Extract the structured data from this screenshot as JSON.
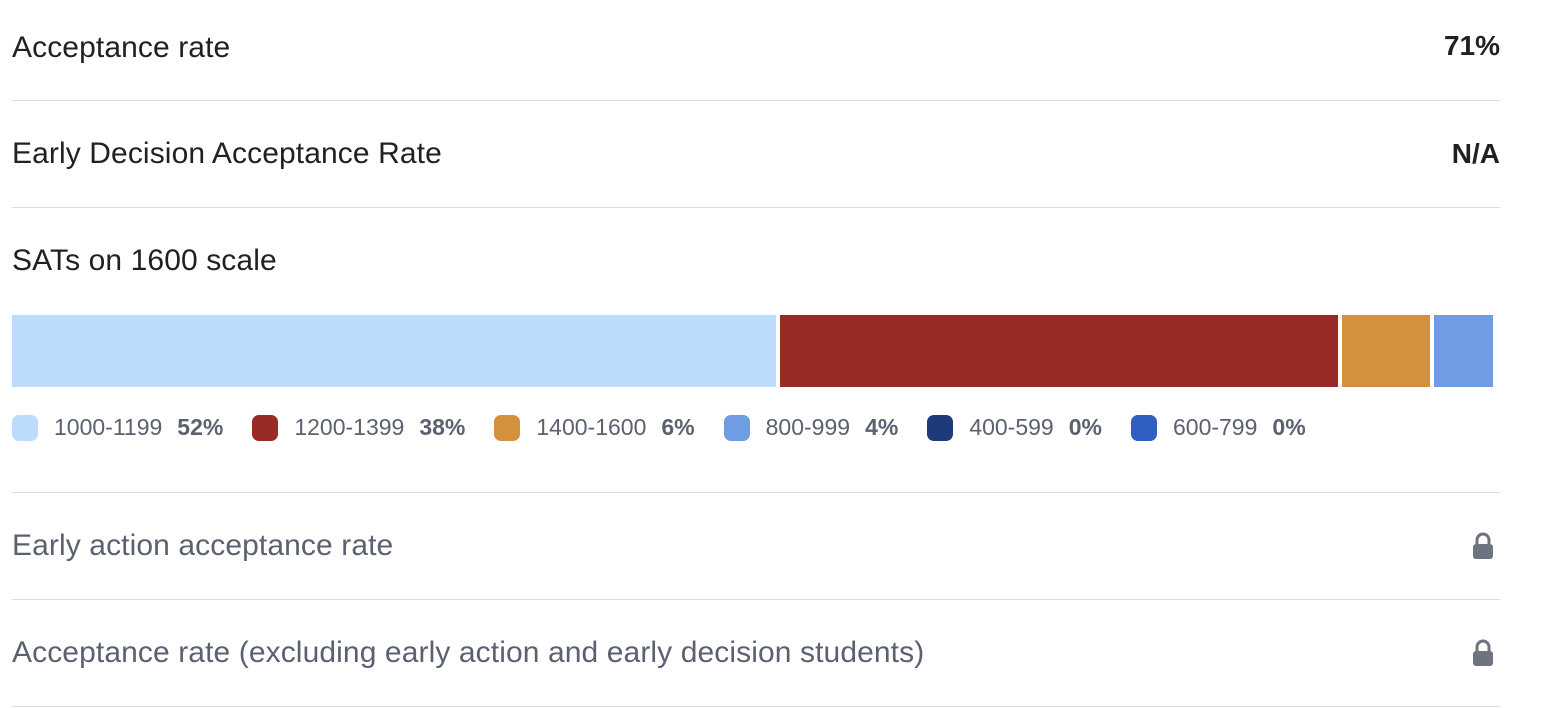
{
  "rows": {
    "acceptance": {
      "label": "Acceptance rate",
      "value": "71%"
    },
    "early_decision": {
      "label": "Early Decision Acceptance Rate",
      "value": "N/A"
    },
    "sat": {
      "label": "SATs on 1600 scale",
      "segments": [
        {
          "range": "1000-1199",
          "percent": "52%",
          "share": 52,
          "color": "#bbdcfb"
        },
        {
          "range": "1200-1399",
          "percent": "38%",
          "share": 38,
          "color": "#992b27"
        },
        {
          "range": "1400-1600",
          "percent": "6%",
          "share": 6,
          "color": "#d4903d"
        },
        {
          "range": "800-999",
          "percent": "4%",
          "share": 4,
          "color": "#6f9ce3"
        },
        {
          "range": "400-599",
          "percent": "0%",
          "share": 0,
          "color": "#1e3a78"
        },
        {
          "range": "600-799",
          "percent": "0%",
          "share": 0,
          "color": "#2f5fc1"
        }
      ]
    },
    "early_action": {
      "label": "Early action acceptance rate",
      "icon": "lock-icon"
    },
    "regular": {
      "label": "Acceptance rate (excluding early action and early decision students)",
      "icon": "lock-icon"
    }
  }
}
